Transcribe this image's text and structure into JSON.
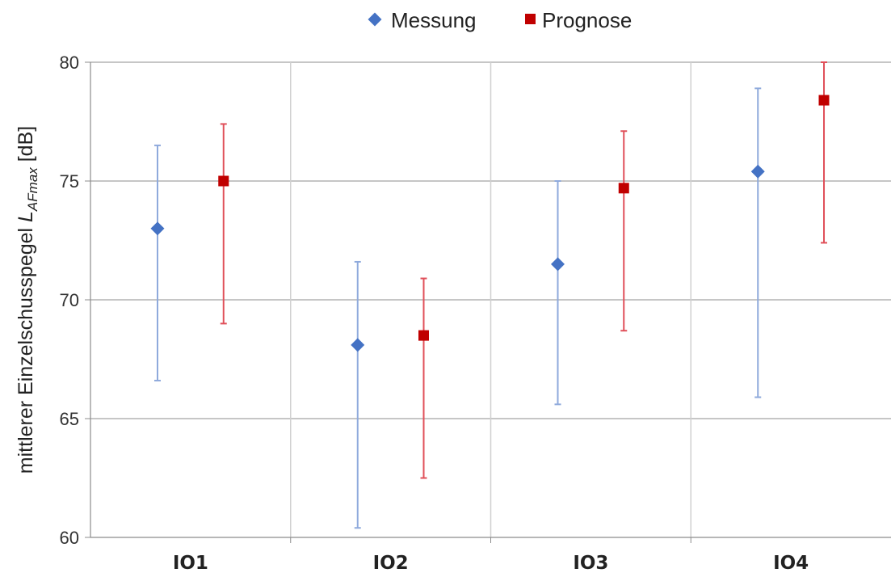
{
  "chart_data": {
    "type": "scatter",
    "categories": [
      "IO1",
      "IO2",
      "IO3",
      "IO4"
    ],
    "series": [
      {
        "name": "Messung",
        "color": "#4472C4",
        "error_color": "#8FAADC",
        "marker": "diamond",
        "values": [
          73.0,
          68.1,
          71.5,
          75.4
        ],
        "error_low": [
          66.6,
          60.4,
          65.6,
          65.9
        ],
        "error_high": [
          76.5,
          71.6,
          75.0,
          78.9
        ]
      },
      {
        "name": "Prognose",
        "color": "#C00000",
        "error_color": "#E0505A",
        "marker": "square",
        "values": [
          75.0,
          68.5,
          74.7,
          78.4
        ],
        "error_low": [
          69.0,
          62.5,
          68.7,
          72.4
        ],
        "error_high": [
          77.4,
          70.9,
          77.1,
          80.0
        ]
      }
    ],
    "ylabel": {
      "prefix": "mittlerer Einzelschusspegel ",
      "symbol": "L",
      "subscript": "AFmax",
      "suffix": " [dB]"
    },
    "ylim": [
      60,
      80
    ],
    "yticks": [
      "60",
      "65",
      "70",
      "75",
      "80"
    ],
    "grid": "horizontal major lines and vertical category separators",
    "legend_position": "top-center"
  }
}
